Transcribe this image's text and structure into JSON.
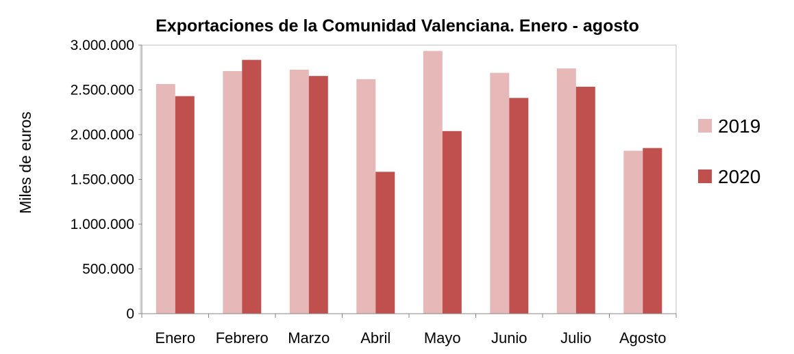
{
  "chart_data": {
    "type": "bar",
    "title": "Exportaciones de la Comunidad Valenciana. Enero - agosto",
    "xlabel": "",
    "ylabel": "Miles de euros",
    "categories": [
      "Enero",
      "Febrero",
      "Marzo",
      "Abril",
      "Mayo",
      "Junio",
      "Julio",
      "Agosto"
    ],
    "series": [
      {
        "name": "2019",
        "color": "#e6b9b8",
        "values": [
          2565000,
          2710000,
          2725000,
          2620000,
          2935000,
          2690000,
          2740000,
          1820000
        ]
      },
      {
        "name": "2020",
        "color": "#c0504d",
        "values": [
          2430000,
          2835000,
          2655000,
          1585000,
          2040000,
          2410000,
          2535000,
          1850000
        ]
      }
    ],
    "ylim": [
      0,
      3000000
    ],
    "yticks": [
      0,
      500000,
      1000000,
      1500000,
      2000000,
      2500000,
      3000000
    ],
    "ytick_labels": [
      "0",
      "500.000",
      "1.000.000",
      "1.500.000",
      "2.000.000",
      "2.500.000",
      "3.000.000"
    ],
    "grid": false,
    "legend_position": "right"
  }
}
